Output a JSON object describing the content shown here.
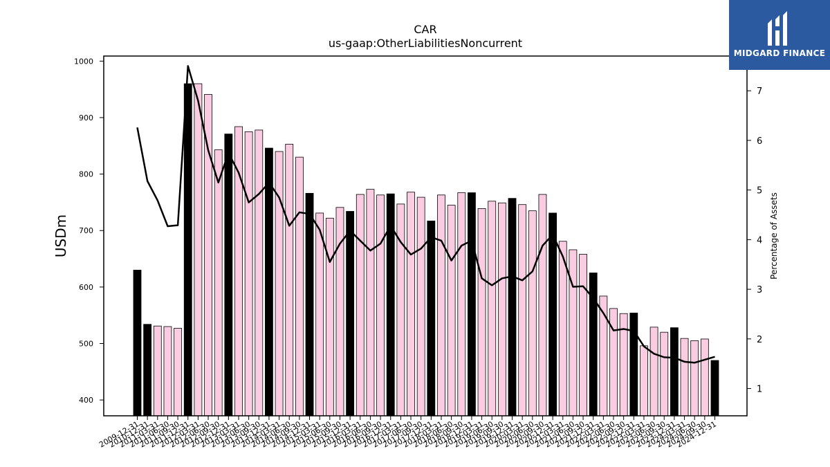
{
  "chart_data": {
    "type": "bar",
    "title": "CAR",
    "subtitle": "us-gaap:OtherLiabilitiesNoncurrent",
    "ylabel": "USDm",
    "y2label": "Percentage of Assets",
    "ylim": [
      372,
      1009
    ],
    "y2lim": [
      0.45,
      7.7
    ],
    "yticks": [
      400,
      500,
      600,
      700,
      800,
      900,
      1000
    ],
    "y2ticks": [
      1,
      2,
      3,
      4,
      5,
      6,
      7
    ],
    "categories": [
      "2009-12-31",
      "2010-12-31",
      "2011-03-31",
      "2011-06-30",
      "2011-09-30",
      "2011-12-31",
      "2012-03-31",
      "2012-06-30",
      "2012-09-30",
      "2012-12-31",
      "2013-03-31",
      "2013-06-30",
      "2013-09-30",
      "2013-12-31",
      "2014-03-31",
      "2014-06-30",
      "2014-09-30",
      "2014-12-31",
      "2015-03-31",
      "2015-06-30",
      "2015-09-30",
      "2015-12-31",
      "2016-03-31",
      "2016-06-30",
      "2016-09-30",
      "2016-12-31",
      "2017-03-31",
      "2017-06-30",
      "2017-09-30",
      "2017-12-31",
      "2018-03-31",
      "2018-06-30",
      "2018-09-30",
      "2018-12-31",
      "2019-03-31",
      "2019-06-30",
      "2019-09-30",
      "2019-12-31",
      "2020-03-31",
      "2020-06-30",
      "2020-09-30",
      "2020-12-31",
      "2021-03-31",
      "2021-06-30",
      "2021-09-30",
      "2021-12-31",
      "2022-03-31",
      "2022-06-30",
      "2022-09-30",
      "2022-12-31",
      "2023-03-31",
      "2023-06-30",
      "2023-09-30",
      "2023-12-31",
      "2024-03-31",
      "2024-06-30",
      "2024-09-30",
      "2024-12-31"
    ],
    "series": [
      {
        "values": [
          630,
          534,
          531,
          530,
          527,
          960,
          960,
          941,
          843,
          871,
          884,
          875,
          878,
          846,
          840,
          853,
          830,
          766,
          731,
          722,
          741,
          734,
          764,
          773,
          763,
          765,
          747,
          768,
          759,
          717,
          763,
          745,
          767,
          767,
          739,
          752,
          749,
          757,
          746,
          735,
          764,
          731,
          681,
          666,
          658,
          625,
          584,
          562,
          553,
          554,
          496,
          529,
          520,
          528,
          509,
          505,
          508,
          470
        ]
      },
      {
        "values": [
          6.26,
          5.18,
          4.79,
          4.27,
          4.29,
          7.5,
          6.8,
          5.8,
          5.15,
          5.75,
          5.35,
          4.75,
          4.92,
          5.15,
          4.85,
          4.28,
          4.55,
          4.52,
          4.2,
          3.55,
          3.92,
          4.18,
          3.98,
          3.78,
          3.92,
          4.28,
          3.95,
          3.7,
          3.82,
          4.05,
          3.98,
          3.58,
          3.88,
          3.98,
          3.22,
          3.08,
          3.22,
          3.26,
          3.18,
          3.36,
          3.88,
          4.1,
          3.66,
          3.05,
          3.06,
          2.82,
          2.52,
          2.17,
          2.2,
          2.16,
          1.85,
          1.7,
          1.63,
          1.62,
          1.54,
          1.52,
          1.58,
          1.64
        ]
      }
    ],
    "annual_color": "#000000",
    "quarter_color": "#f9cce2",
    "line_color": "#000000"
  },
  "logo": {
    "text": "MIDGARD FINANCE",
    "color": "#2c5aa0"
  }
}
